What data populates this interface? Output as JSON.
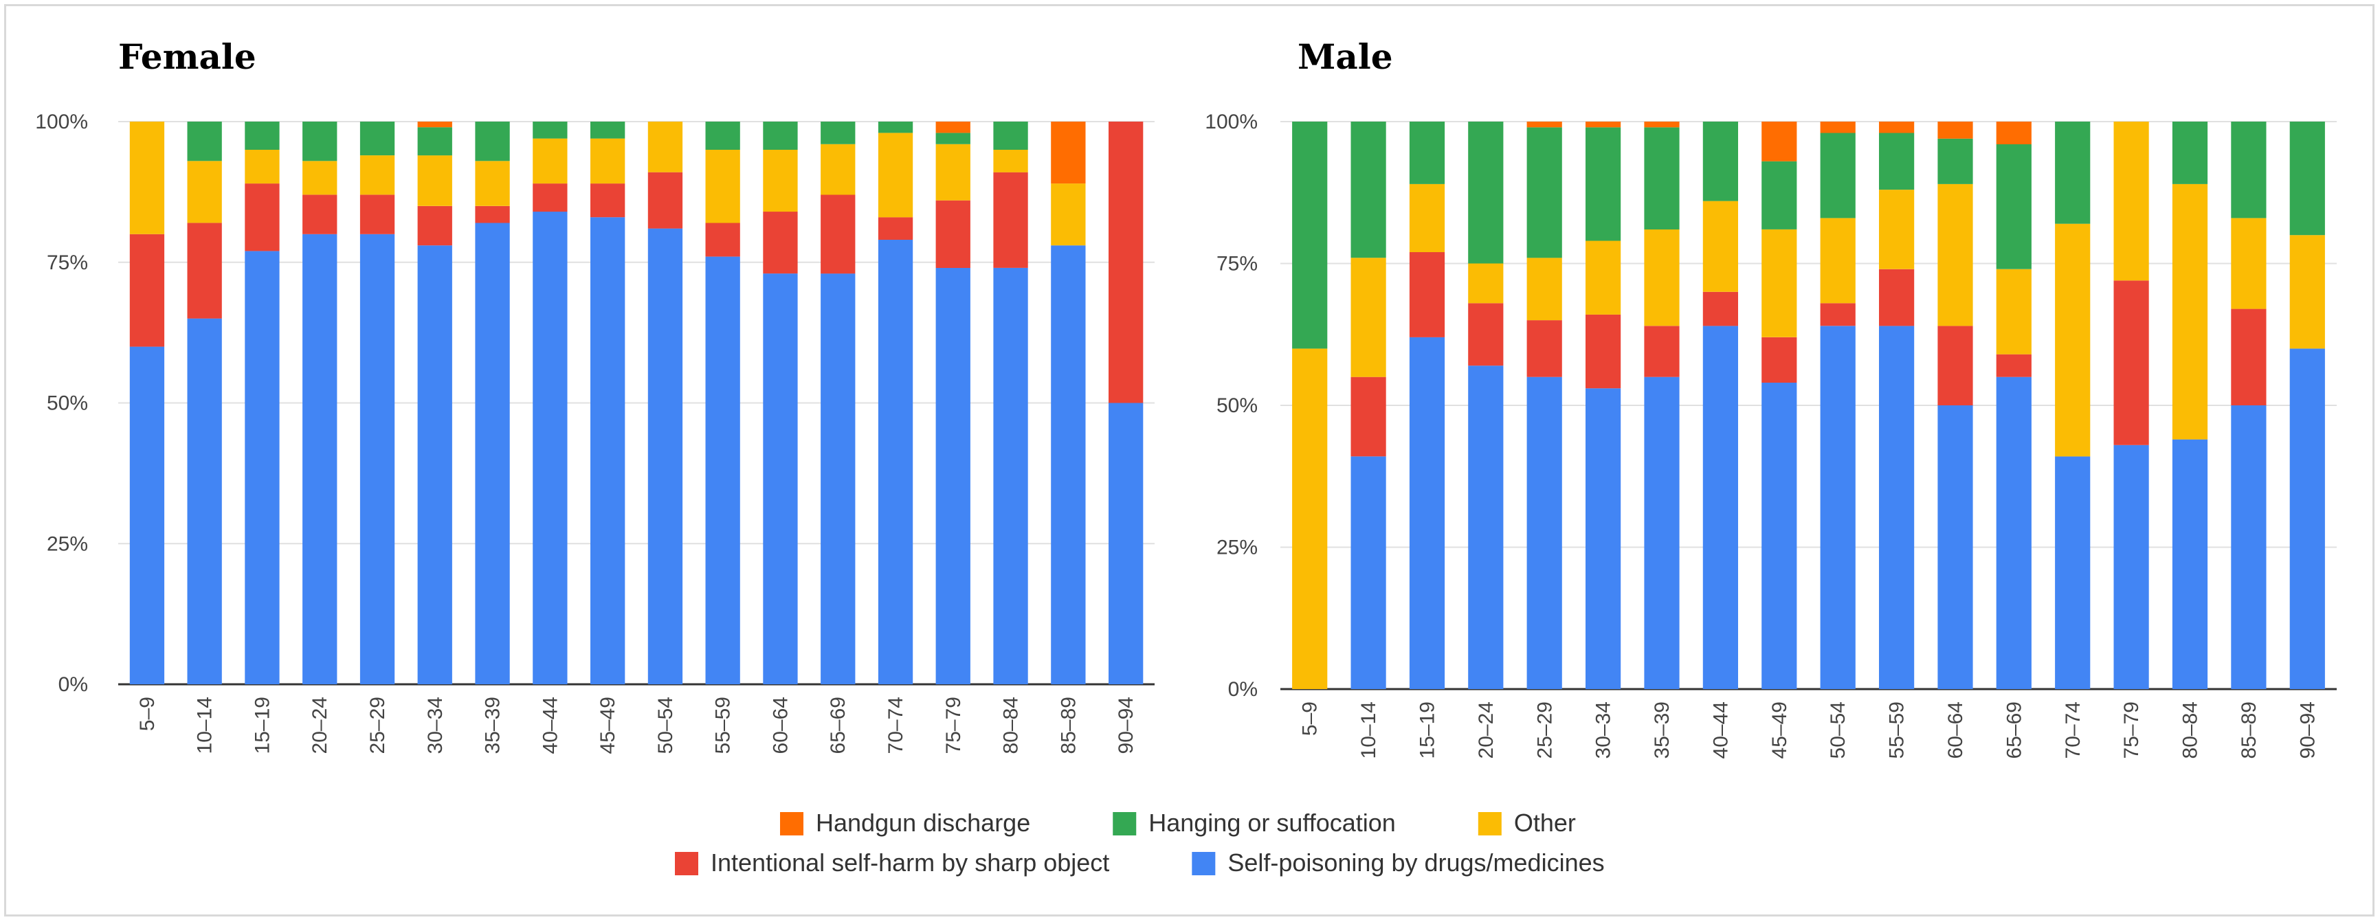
{
  "chart_data": [
    {
      "type": "bar",
      "stacked": true,
      "normalized": true,
      "title": "Female",
      "xlabel": "",
      "ylabel": "",
      "ylim": [
        0,
        100
      ],
      "yticks": [
        "0%",
        "25%",
        "50%",
        "75%",
        "100%"
      ],
      "grid": "horizontal",
      "categories": [
        "5–9",
        "10–14",
        "15–19",
        "20–24",
        "25–29",
        "30–34",
        "35–39",
        "40–44",
        "45–49",
        "50–54",
        "55–59",
        "60–64",
        "65–69",
        "70–74",
        "75–79",
        "80–84",
        "85–89",
        "90–94"
      ],
      "series": [
        {
          "name": "Self-poisoning by drugs/medicines",
          "values": [
            60,
            65,
            77,
            80,
            80,
            78,
            82,
            84,
            83,
            81,
            76,
            73,
            73,
            79,
            74,
            74,
            78,
            50
          ]
        },
        {
          "name": "Intentional self-harm by sharp object",
          "values": [
            20,
            17,
            12,
            7,
            7,
            7,
            3,
            5,
            6,
            10,
            6,
            11,
            14,
            4,
            12,
            17,
            0,
            50
          ]
        },
        {
          "name": "Other",
          "values": [
            20,
            11,
            6,
            6,
            7,
            9,
            8,
            8,
            8,
            9,
            13,
            11,
            9,
            15,
            10,
            4,
            11,
            0
          ]
        },
        {
          "name": "Hanging or suffocation",
          "values": [
            0,
            7,
            5,
            7,
            6,
            5,
            7,
            3,
            3,
            0,
            5,
            5,
            4,
            2,
            2,
            5,
            0,
            0
          ]
        },
        {
          "name": "Handgun discharge",
          "values": [
            0,
            0,
            0,
            0,
            0,
            1,
            0,
            0,
            0,
            0,
            0,
            0,
            0,
            0,
            2,
            0,
            11,
            0
          ]
        }
      ]
    },
    {
      "type": "bar",
      "stacked": true,
      "normalized": true,
      "title": "Male",
      "xlabel": "",
      "ylabel": "",
      "ylim": [
        0,
        100
      ],
      "yticks": [
        "0%",
        "25%",
        "50%",
        "75%",
        "100%"
      ],
      "grid": "horizontal",
      "categories": [
        "5–9",
        "10–14",
        "15–19",
        "20–24",
        "25–29",
        "30–34",
        "35–39",
        "40–44",
        "45–49",
        "50–54",
        "55–59",
        "60–64",
        "65–69",
        "70–74",
        "75–79",
        "80–84",
        "85–89",
        "90–94"
      ],
      "series": [
        {
          "name": "Self-poisoning by drugs/medicines",
          "values": [
            0,
            41,
            62,
            57,
            55,
            53,
            55,
            64,
            54,
            64,
            64,
            50,
            55,
            41,
            43,
            44,
            50,
            60
          ]
        },
        {
          "name": "Intentional self-harm by sharp object",
          "values": [
            0,
            14,
            15,
            11,
            10,
            13,
            9,
            6,
            8,
            4,
            10,
            14,
            4,
            0,
            29,
            0,
            17,
            0
          ]
        },
        {
          "name": "Other",
          "values": [
            60,
            21,
            12,
            7,
            11,
            13,
            17,
            16,
            19,
            15,
            14,
            25,
            15,
            41,
            28,
            45,
            16,
            20
          ]
        },
        {
          "name": "Hanging or suffocation",
          "values": [
            40,
            24,
            11,
            25,
            23,
            20,
            18,
            14,
            12,
            15,
            10,
            8,
            22,
            18,
            0,
            11,
            17,
            20
          ]
        },
        {
          "name": "Handgun discharge",
          "values": [
            0,
            0,
            0,
            0,
            1,
            1,
            1,
            0,
            7,
            2,
            2,
            3,
            4,
            0,
            0,
            0,
            0,
            0
          ]
        }
      ]
    }
  ],
  "legend": {
    "placement": "bottom",
    "rows": [
      [
        {
          "label": "Handgun discharge",
          "color": "#ff6d01"
        },
        {
          "label": "Hanging or suffocation",
          "color": "#34a853"
        },
        {
          "label": "Other",
          "color": "#fbbc04"
        }
      ],
      [
        {
          "label": "Intentional self-harm by sharp object",
          "color": "#ea4335"
        },
        {
          "label": "Self-poisoning by drugs/medicines",
          "color": "#4285f4"
        }
      ]
    ]
  },
  "colors": {
    "Self-poisoning by drugs/medicines": "#4285f4",
    "Intentional self-harm by sharp object": "#ea4335",
    "Other": "#fbbc04",
    "Hanging or suffocation": "#34a853",
    "Handgun discharge": "#ff6d01",
    "gridline": "#e0e0e0",
    "axis": "#333333"
  }
}
